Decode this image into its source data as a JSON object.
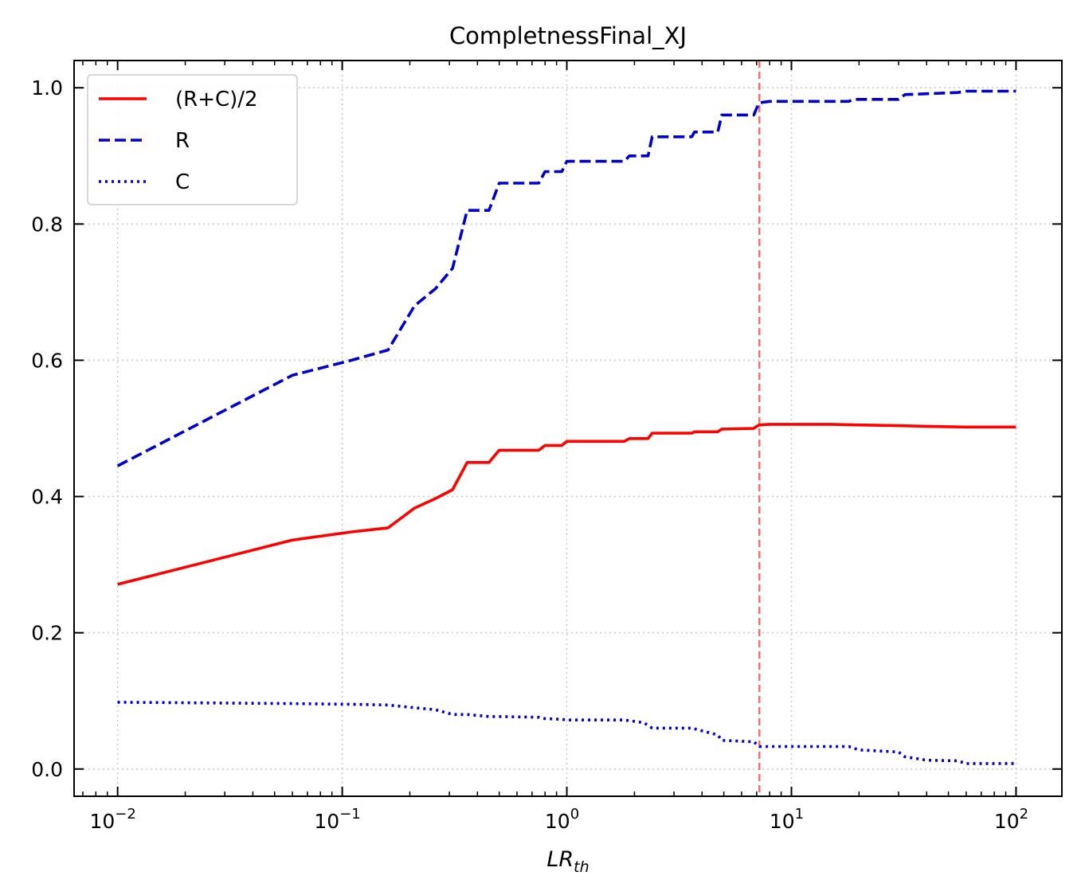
{
  "chart_data": {
    "type": "line",
    "title": "CompletnessFinal_XJ",
    "xlabel": "LR",
    "xlabel_sub": "th",
    "ylabel": "",
    "xscale": "log",
    "xlim": [
      0.0064,
      160
    ],
    "ylim": [
      -0.04,
      1.04
    ],
    "x_ticks": [
      0.01,
      0.1,
      1,
      10,
      100
    ],
    "x_tick_labels": [
      {
        "base": "10",
        "exp": "−2"
      },
      {
        "base": "10",
        "exp": "−1"
      },
      {
        "base": "10",
        "exp": "0"
      },
      {
        "base": "10",
        "exp": "1"
      },
      {
        "base": "10",
        "exp": "2"
      }
    ],
    "y_ticks": [
      0.0,
      0.2,
      0.4,
      0.6,
      0.8,
      1.0
    ],
    "y_tick_labels": [
      "0.0",
      "0.2",
      "0.4",
      "0.6",
      "0.8",
      "1.0"
    ],
    "grid": true,
    "legend_position": "top-left",
    "vline": {
      "x": 7.2,
      "color": "#ff6666",
      "style": "dashed"
    },
    "series": [
      {
        "name": "(R+C)/2",
        "color": "#ff0000",
        "style": "solid",
        "x": [
          0.01,
          0.06,
          0.11,
          0.16,
          0.21,
          0.26,
          0.31,
          0.36,
          0.45,
          0.5,
          0.75,
          0.8,
          0.95,
          1.0,
          1.8,
          1.9,
          2.3,
          2.4,
          3.6,
          3.7,
          4.7,
          4.9,
          6.8,
          7.0,
          7.2,
          8.0,
          15,
          20,
          30,
          40,
          60,
          100
        ],
        "y": [
          0.271,
          0.336,
          0.348,
          0.354,
          0.383,
          0.397,
          0.41,
          0.45,
          0.45,
          0.468,
          0.468,
          0.475,
          0.475,
          0.481,
          0.481,
          0.485,
          0.485,
          0.493,
          0.493,
          0.495,
          0.495,
          0.499,
          0.5,
          0.503,
          0.505,
          0.506,
          0.506,
          0.505,
          0.504,
          0.503,
          0.502,
          0.502
        ]
      },
      {
        "name": "R",
        "color": "#0000cc",
        "style": "dashed",
        "x": [
          0.01,
          0.06,
          0.11,
          0.16,
          0.21,
          0.26,
          0.31,
          0.36,
          0.45,
          0.5,
          0.75,
          0.8,
          0.95,
          1.0,
          1.8,
          1.9,
          2.3,
          2.4,
          3.6,
          3.7,
          4.7,
          4.9,
          6.8,
          7.0,
          7.2,
          8.0,
          18,
          19,
          30,
          32,
          55,
          60,
          100
        ],
        "y": [
          0.445,
          0.578,
          0.6,
          0.615,
          0.68,
          0.705,
          0.735,
          0.82,
          0.82,
          0.86,
          0.86,
          0.877,
          0.877,
          0.892,
          0.892,
          0.9,
          0.9,
          0.928,
          0.928,
          0.935,
          0.935,
          0.96,
          0.96,
          0.97,
          0.978,
          0.98,
          0.98,
          0.983,
          0.983,
          0.99,
          0.993,
          0.995,
          0.995
        ]
      },
      {
        "name": "C",
        "color": "#0000cc",
        "style": "dotted",
        "x": [
          0.01,
          0.06,
          0.11,
          0.16,
          0.21,
          0.26,
          0.31,
          0.36,
          0.45,
          0.5,
          0.75,
          0.8,
          0.95,
          1.0,
          1.8,
          2.2,
          2.4,
          3.6,
          3.9,
          4.7,
          4.9,
          6.8,
          7.2,
          8.0,
          18,
          20,
          30,
          32,
          40,
          55,
          60,
          100
        ],
        "y": [
          0.098,
          0.096,
          0.095,
          0.094,
          0.09,
          0.087,
          0.08,
          0.08,
          0.077,
          0.077,
          0.076,
          0.074,
          0.073,
          0.072,
          0.072,
          0.068,
          0.06,
          0.06,
          0.057,
          0.05,
          0.042,
          0.04,
          0.033,
          0.033,
          0.033,
          0.028,
          0.025,
          0.018,
          0.013,
          0.012,
          0.008,
          0.008
        ]
      }
    ]
  }
}
